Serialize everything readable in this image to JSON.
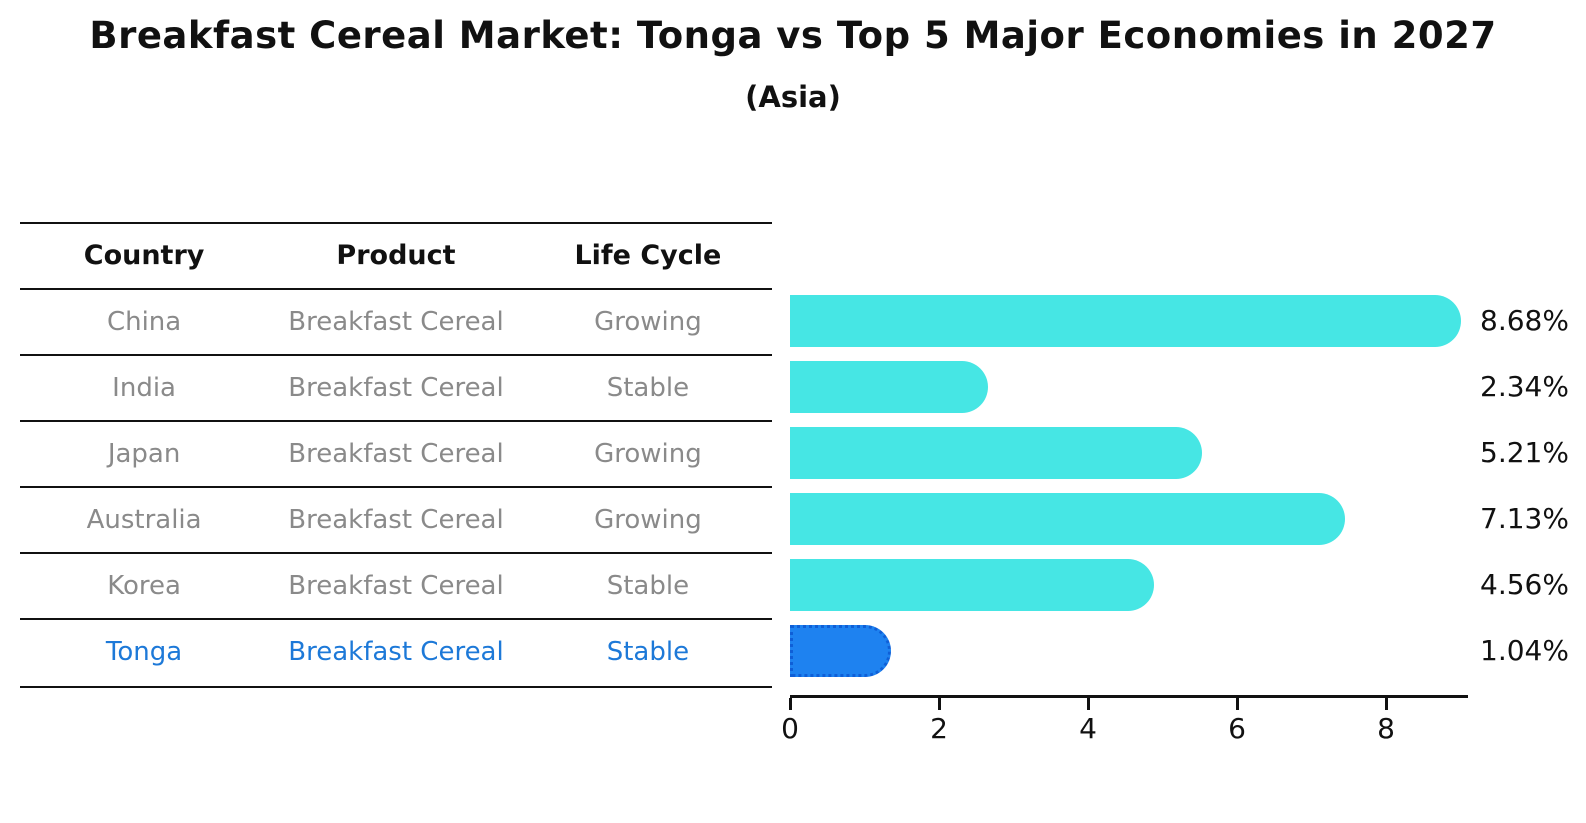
{
  "title": "Breakfast Cereal Market: Tonga vs Top 5 Major Economies in 2027",
  "subtitle": "(Asia)",
  "table": {
    "headers": [
      "Country",
      "Product",
      "Life Cycle"
    ],
    "rows": [
      {
        "country": "China",
        "product": "Breakfast Cereal",
        "life_cycle": "Growing"
      },
      {
        "country": "India",
        "product": "Breakfast Cereal",
        "life_cycle": "Stable"
      },
      {
        "country": "Japan",
        "product": "Breakfast Cereal",
        "life_cycle": "Growing"
      },
      {
        "country": "Australia",
        "product": "Breakfast Cereal",
        "life_cycle": "Growing"
      },
      {
        "country": "Korea",
        "product": "Breakfast Cereal",
        "life_cycle": "Stable"
      },
      {
        "country": "Tonga",
        "product": "Breakfast Cereal",
        "life_cycle": "Stable"
      }
    ],
    "highlight_row": "Tonga"
  },
  "chart_data": {
    "type": "bar",
    "orientation": "horizontal",
    "categories": [
      "China",
      "India",
      "Japan",
      "Australia",
      "Korea",
      "Tonga"
    ],
    "values": [
      8.68,
      2.34,
      5.21,
      7.13,
      4.56,
      1.04
    ],
    "value_labels": [
      "8.68%",
      "2.34%",
      "5.21%",
      "7.13%",
      "4.56%",
      "1.04%"
    ],
    "title": "Breakfast Cereal Market: Tonga vs Top 5 Major Economies in 2027 (Asia)",
    "xlabel": "",
    "ylabel": "",
    "xlim": [
      0,
      9.1
    ],
    "xticks": [
      "0",
      "2",
      "4",
      "6",
      "8"
    ],
    "xtick_values": [
      0,
      2,
      4,
      6,
      8
    ],
    "grid": false,
    "legend": false,
    "highlight_index": 5,
    "bar_color": "#46E6E4",
    "highlight_color": "#1E82F0",
    "highlight_edge_color": "#0F5FD7"
  },
  "colors": {
    "background": "#ffffff",
    "text_primary": "#111111",
    "table_text": "#8a8a8a",
    "highlight_text": "#1d79d8",
    "axis": "#111111"
  }
}
